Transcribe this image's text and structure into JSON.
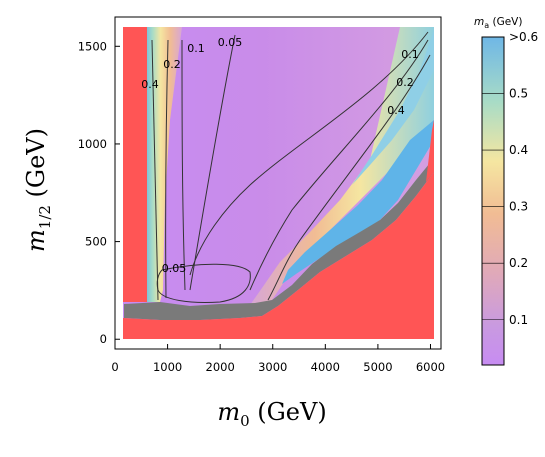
{
  "chart_data": {
    "type": "heatmap",
    "x": {
      "range": [
        0,
        6200
      ],
      "ticks": [
        "0",
        "1000",
        "2000",
        "3000",
        "4000",
        "5000",
        "6000"
      ]
    },
    "y": {
      "range": [
        -50,
        1650
      ],
      "ticks": [
        "0",
        "500",
        "1000",
        "1500"
      ]
    },
    "colorbar": {
      "title_var": "m",
      "title_sub": "a",
      "title_unit": "(GeV)",
      "range": [
        0.02,
        0.6
      ],
      "ticks": [
        ">0.6",
        "0.5",
        "0.4",
        "0.3",
        "0.2",
        "0.1"
      ],
      "stops": [
        "#c78cf2",
        "#c99ae0",
        "#e0a9b9",
        "#f1bc94",
        "#f5e6a1",
        "#a9dcc6",
        "#6fb7e6"
      ]
    },
    "regions": [
      {
        "name": "excluded",
        "color": "#ff5555"
      },
      {
        "name": "boundary",
        "color": "#7a7a7a"
      },
      {
        "name": "high-mass",
        "color": "#5fb4e8"
      }
    ],
    "contours": [
      {
        "level": "0.05",
        "label_points": [
          [
            1100,
            1570
          ],
          [
            500,
            270
          ]
        ]
      },
      {
        "level": "0.1",
        "label_points": [
          [
            800,
            1550
          ],
          [
            5700,
            1460
          ]
        ]
      },
      {
        "level": "0.2",
        "label_points": [
          [
            550,
            1440
          ],
          [
            5600,
            1230
          ]
        ]
      },
      {
        "level": "0.4",
        "label_points": [
          [
            280,
            1280
          ],
          [
            5300,
            1040
          ]
        ]
      }
    ]
  }
}
